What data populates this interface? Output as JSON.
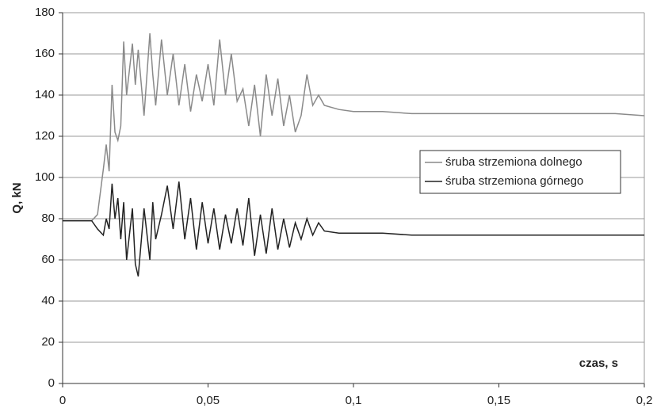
{
  "chart_data": {
    "type": "line",
    "x_label": "czas, s",
    "y_label": "Q, kN",
    "x": [
      0,
      0.005,
      0.01,
      0.012,
      0.014,
      0.015,
      0.016,
      0.017,
      0.018,
      0.019,
      0.02,
      0.021,
      0.022,
      0.024,
      0.025,
      0.026,
      0.028,
      0.03,
      0.031,
      0.032,
      0.034,
      0.036,
      0.038,
      0.04,
      0.042,
      0.044,
      0.046,
      0.048,
      0.05,
      0.052,
      0.054,
      0.056,
      0.058,
      0.06,
      0.062,
      0.064,
      0.066,
      0.068,
      0.07,
      0.072,
      0.074,
      0.076,
      0.078,
      0.08,
      0.082,
      0.084,
      0.086,
      0.088,
      0.09,
      0.095,
      0.1,
      0.11,
      0.12,
      0.13,
      0.14,
      0.15,
      0.16,
      0.17,
      0.18,
      0.19,
      0.2
    ],
    "series": [
      {
        "name": "śruba strzemiona dolnego",
        "color": "#8a8a8a",
        "values": [
          79,
          79,
          79,
          82,
          104,
          116,
          103,
          145,
          122,
          118,
          125,
          166,
          140,
          165,
          145,
          162,
          130,
          170,
          150,
          135,
          167,
          140,
          160,
          135,
          155,
          132,
          150,
          137,
          155,
          135,
          167,
          140,
          160,
          137,
          143,
          125,
          145,
          120,
          150,
          130,
          148,
          125,
          140,
          122,
          130,
          150,
          135,
          140,
          135,
          133,
          132,
          132,
          131,
          131,
          131,
          131,
          131,
          131,
          131,
          131,
          130
        ]
      },
      {
        "name": "śruba strzemiona górnego",
        "color": "#222222",
        "values": [
          79,
          79,
          79,
          75,
          72,
          80,
          75,
          97,
          80,
          90,
          70,
          88,
          60,
          85,
          58,
          52,
          85,
          60,
          88,
          70,
          82,
          96,
          75,
          98,
          70,
          90,
          65,
          88,
          68,
          85,
          65,
          82,
          68,
          85,
          67,
          90,
          62,
          82,
          63,
          85,
          65,
          80,
          66,
          78,
          70,
          80,
          72,
          78,
          74,
          73,
          73,
          73,
          72,
          72,
          72,
          72,
          72,
          72,
          72,
          72,
          72
        ]
      }
    ],
    "xlim": [
      0,
      0.2
    ],
    "xticks": [
      0,
      {
        "value": 0.05,
        "label": "0,05"
      },
      {
        "value": 0.1,
        "label": "0,1"
      },
      {
        "value": 0.15,
        "label": "0,15"
      },
      {
        "value": 0.2,
        "label": "0,2"
      }
    ],
    "ylim": [
      0,
      180
    ],
    "yticks": [
      0,
      20,
      40,
      60,
      80,
      100,
      120,
      140,
      160,
      180
    ],
    "grid": true,
    "legend": "right"
  }
}
